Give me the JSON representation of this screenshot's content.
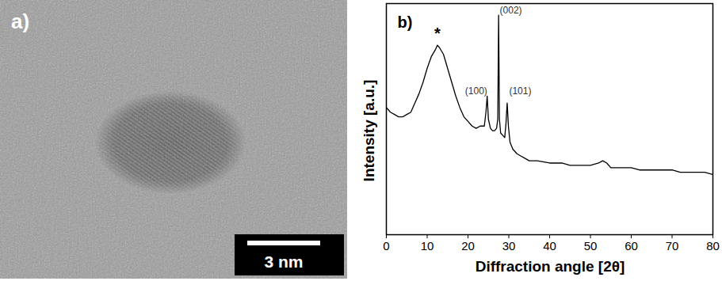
{
  "image": {
    "label": "a)",
    "scale_bar": "3 nm"
  },
  "chart_data": {
    "type": "line",
    "title": "b)",
    "x_label": "Diffraction angle [2θ]",
    "y_label": "Intensity [a.u.]",
    "x": [
      0,
      1,
      2,
      3,
      4,
      5,
      6,
      7,
      8,
      9,
      10,
      11,
      12,
      12.5,
      13,
      14,
      15,
      16,
      17,
      18,
      19,
      20,
      21,
      22,
      23,
      24,
      24.4,
      24.7,
      25,
      25.5,
      26,
      26.5,
      27,
      27.3,
      27.5,
      27.7,
      28,
      28.5,
      29,
      29.3,
      29.6,
      29.9,
      30.3,
      31,
      32,
      33,
      34,
      35,
      37,
      40,
      43,
      45,
      48,
      50,
      52,
      53,
      54,
      55,
      58,
      60,
      62,
      65,
      68,
      70,
      72,
      75,
      78,
      80
    ],
    "values": [
      55,
      53,
      52,
      51,
      51,
      52,
      53,
      57,
      61,
      66,
      72,
      77,
      80,
      82,
      81,
      78,
      72,
      66,
      60,
      55,
      51,
      49,
      47,
      46,
      47,
      47,
      53,
      60,
      50,
      46,
      45,
      45,
      46,
      50,
      95,
      50,
      44,
      43,
      42,
      48,
      57,
      47,
      40,
      37,
      35,
      34,
      33,
      32,
      32,
      31,
      31,
      30,
      30,
      30,
      31,
      32,
      31,
      29,
      29,
      29,
      28,
      28,
      28,
      28,
      27,
      27,
      27,
      26
    ],
    "color": "#000000",
    "xlim": [
      0,
      80
    ],
    "xticks": [
      0,
      10,
      20,
      30,
      40,
      50,
      60,
      70,
      80
    ],
    "ylim": [
      0,
      100
    ],
    "tick_labels": "x",
    "annotations": [
      {
        "text": "*",
        "x": 12.5,
        "y": 87
      },
      {
        "text": "(100)",
        "x": 22,
        "y": 62
      },
      {
        "text": "(002)",
        "x": 30.5,
        "y": 97
      },
      {
        "text": "(101)",
        "x": 32.8,
        "y": 62
      }
    ]
  }
}
